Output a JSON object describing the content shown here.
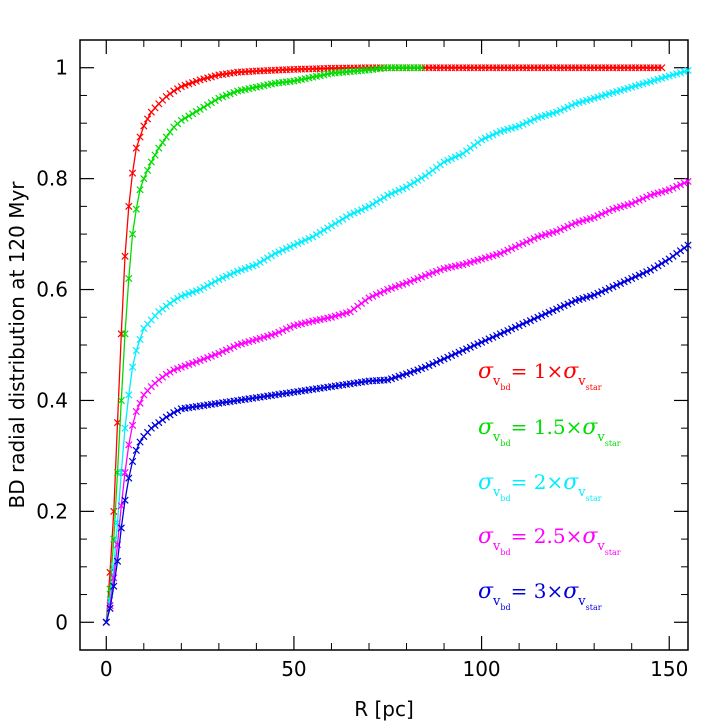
{
  "chart_data": {
    "type": "line",
    "title": "",
    "xlabel": "R [pc]",
    "ylabel": "BD radial distribution at 120 Myr",
    "xlim": [
      -7,
      155
    ],
    "ylim": [
      -0.05,
      1.05
    ],
    "xticks": [
      0,
      50,
      100,
      150
    ],
    "yticks": [
      0,
      0.2,
      0.4,
      0.6,
      0.8,
      1
    ],
    "xtick_labels": [
      "0",
      "50",
      "100",
      "150"
    ],
    "ytick_labels": [
      "0",
      "0.2",
      "0.4",
      "0.6",
      "0.8",
      "1"
    ],
    "grid": false,
    "legend_position": "right-middle",
    "marker": "x",
    "series": [
      {
        "name": "σ_vbd = 1×σ_vstar",
        "legend": {
          "sigma": "σ",
          "v": "v",
          "bd": "bd",
          "eq": "=",
          "factor": "1×",
          "star": "star"
        },
        "color": "#ff0000",
        "x": [
          0,
          1,
          2,
          3,
          4,
          5,
          6,
          7,
          8,
          9,
          10,
          12,
          14,
          16,
          18,
          20,
          25,
          30,
          35,
          40,
          50,
          60,
          70,
          80,
          90,
          100,
          110,
          120,
          130,
          140,
          148
        ],
        "y": [
          0,
          0.09,
          0.2,
          0.36,
          0.52,
          0.66,
          0.75,
          0.81,
          0.855,
          0.875,
          0.895,
          0.92,
          0.935,
          0.948,
          0.958,
          0.966,
          0.978,
          0.987,
          0.992,
          0.994,
          0.997,
          0.999,
          1,
          1,
          1,
          1,
          1,
          1,
          1,
          1,
          1
        ]
      },
      {
        "name": "σ_vbd = 1.5×σ_vstar",
        "legend": {
          "sigma": "σ",
          "v": "v",
          "bd": "bd",
          "eq": "=",
          "factor": "1.5×",
          "star": "star"
        },
        "color": "#00dd00",
        "x": [
          0,
          1,
          2,
          3,
          4,
          5,
          6,
          7,
          8,
          9,
          10,
          12,
          14,
          16,
          18,
          20,
          25,
          30,
          35,
          40,
          45,
          50,
          55,
          60,
          70,
          75,
          84
        ],
        "y": [
          0,
          0.06,
          0.15,
          0.27,
          0.4,
          0.52,
          0.62,
          0.7,
          0.745,
          0.78,
          0.8,
          0.83,
          0.855,
          0.875,
          0.893,
          0.905,
          0.925,
          0.945,
          0.958,
          0.965,
          0.972,
          0.976,
          0.983,
          0.99,
          0.996,
          1,
          1
        ]
      },
      {
        "name": "σ_vbd = 2×σ_vstar",
        "legend": {
          "sigma": "σ",
          "v": "v",
          "bd": "bd",
          "eq": "=",
          "factor": "2×",
          "star": "star"
        },
        "color": "#00eeff",
        "x": [
          0,
          1,
          2,
          3,
          4,
          5,
          6,
          7,
          8,
          9,
          10,
          12,
          14,
          16,
          18,
          20,
          25,
          30,
          35,
          40,
          45,
          50,
          55,
          60,
          65,
          70,
          75,
          80,
          85,
          90,
          95,
          100,
          105,
          110,
          115,
          120,
          125,
          130,
          135,
          140,
          145,
          150,
          155
        ],
        "y": [
          0,
          0.04,
          0.1,
          0.18,
          0.27,
          0.35,
          0.41,
          0.46,
          0.49,
          0.51,
          0.53,
          0.545,
          0.56,
          0.57,
          0.58,
          0.588,
          0.6,
          0.618,
          0.633,
          0.645,
          0.665,
          0.68,
          0.695,
          0.715,
          0.735,
          0.75,
          0.77,
          0.785,
          0.805,
          0.83,
          0.845,
          0.87,
          0.885,
          0.895,
          0.91,
          0.92,
          0.935,
          0.945,
          0.955,
          0.965,
          0.975,
          0.985,
          0.995
        ]
      },
      {
        "name": "σ_vbd = 2.5×σ_vstar",
        "legend": {
          "sigma": "σ",
          "v": "v",
          "bd": "bd",
          "eq": "=",
          "factor": "2.5×",
          "star": "star"
        },
        "color": "#ff00ff",
        "x": [
          0,
          1,
          2,
          3,
          4,
          5,
          6,
          7,
          8,
          9,
          10,
          12,
          14,
          16,
          18,
          20,
          25,
          30,
          35,
          40,
          45,
          50,
          55,
          60,
          65,
          70,
          75,
          80,
          85,
          90,
          95,
          100,
          105,
          110,
          115,
          120,
          125,
          130,
          135,
          140,
          145,
          150,
          155
        ],
        "y": [
          0,
          0.03,
          0.08,
          0.14,
          0.21,
          0.27,
          0.32,
          0.355,
          0.38,
          0.395,
          0.41,
          0.425,
          0.437,
          0.447,
          0.455,
          0.46,
          0.472,
          0.485,
          0.5,
          0.51,
          0.52,
          0.535,
          0.543,
          0.55,
          0.56,
          0.585,
          0.6,
          0.612,
          0.625,
          0.638,
          0.645,
          0.655,
          0.665,
          0.68,
          0.695,
          0.705,
          0.72,
          0.73,
          0.745,
          0.755,
          0.77,
          0.78,
          0.795
        ]
      },
      {
        "name": "σ_vbd = 3×σ_vstar",
        "legend": {
          "sigma": "σ",
          "v": "v",
          "bd": "bd",
          "eq": "=",
          "factor": "3×",
          "star": "star"
        },
        "color": "#0000dd",
        "x": [
          0,
          1,
          2,
          3,
          4,
          5,
          6,
          7,
          8,
          9,
          10,
          12,
          14,
          16,
          18,
          20,
          25,
          30,
          35,
          40,
          45,
          50,
          55,
          60,
          65,
          70,
          75,
          80,
          85,
          90,
          95,
          100,
          105,
          110,
          115,
          120,
          125,
          130,
          135,
          140,
          145,
          150,
          155
        ],
        "y": [
          0,
          0.025,
          0.065,
          0.11,
          0.17,
          0.22,
          0.26,
          0.29,
          0.31,
          0.325,
          0.335,
          0.35,
          0.36,
          0.37,
          0.378,
          0.385,
          0.39,
          0.395,
          0.4,
          0.405,
          0.41,
          0.415,
          0.42,
          0.425,
          0.43,
          0.435,
          0.437,
          0.448,
          0.46,
          0.475,
          0.49,
          0.505,
          0.52,
          0.535,
          0.55,
          0.565,
          0.58,
          0.59,
          0.605,
          0.62,
          0.635,
          0.655,
          0.68
        ]
      }
    ]
  }
}
